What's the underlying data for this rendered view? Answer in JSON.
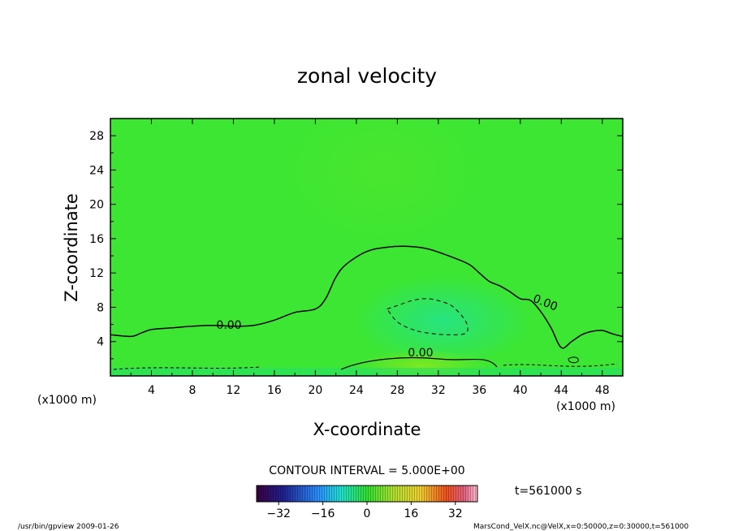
{
  "chart_data": {
    "type": "heatmap",
    "title": "zonal velocity",
    "xlabel": "X-coordinate",
    "ylabel": "Z-coordinate",
    "x_unit_label": "(x1000 m)",
    "z_unit_label": "(x1000 m)",
    "xlim": [
      0,
      50
    ],
    "ylim": [
      0,
      30
    ],
    "x_ticks": [
      "4",
      "8",
      "12",
      "16",
      "20",
      "24",
      "28",
      "32",
      "36",
      "40",
      "44",
      "48"
    ],
    "y_ticks": [
      "4",
      "8",
      "12",
      "16",
      "20",
      "24",
      "28"
    ],
    "contour_interval_text": "CONTOUR INTERVAL = 5.000E+00",
    "contour_labels": [
      "0.00",
      "0.00",
      "0.00"
    ],
    "time_text": "t=561000 s",
    "colorbar": {
      "range": [
        -40,
        40
      ],
      "ticks": [
        "−32",
        "−16",
        "0",
        "16",
        "32"
      ]
    },
    "zero_contour": {
      "x": [
        0,
        2,
        3,
        4,
        6,
        8,
        10,
        12,
        14,
        16,
        18,
        20,
        21,
        22,
        23,
        25,
        27,
        29,
        31,
        33,
        35,
        36,
        37,
        38,
        39,
        40,
        41,
        42,
        43,
        44,
        45,
        46,
        47,
        48,
        49,
        50
      ],
      "z": [
        4.8,
        4.6,
        5.0,
        5.4,
        5.6,
        5.8,
        5.9,
        5.8,
        5.9,
        6.5,
        7.4,
        7.8,
        9.0,
        11.5,
        13.0,
        14.5,
        15.0,
        15.1,
        14.8,
        14.0,
        13.0,
        12.0,
        11.0,
        10.5,
        9.8,
        9.0,
        8.8,
        7.5,
        5.6,
        3.3,
        4.0,
        4.8,
        5.2,
        5.3,
        4.9,
        4.6
      ]
    },
    "negative_contour": {
      "x": [
        27.0,
        28.0,
        29.5,
        31.0,
        32.5,
        33.5,
        34.7,
        34.7,
        33.0,
        31.0,
        29.5,
        28.0,
        27.0
      ],
      "z": [
        7.8,
        8.2,
        8.8,
        9.0,
        8.6,
        8.0,
        6.3,
        5.0,
        4.8,
        5.0,
        5.4,
        6.3,
        7.8
      ]
    },
    "footer_left": "/usr/bin/gpview  2009-01-26",
    "footer_right": "MarsCond_VelX.nc@VelX,x=0:50000,z=0:30000,t=561000"
  }
}
